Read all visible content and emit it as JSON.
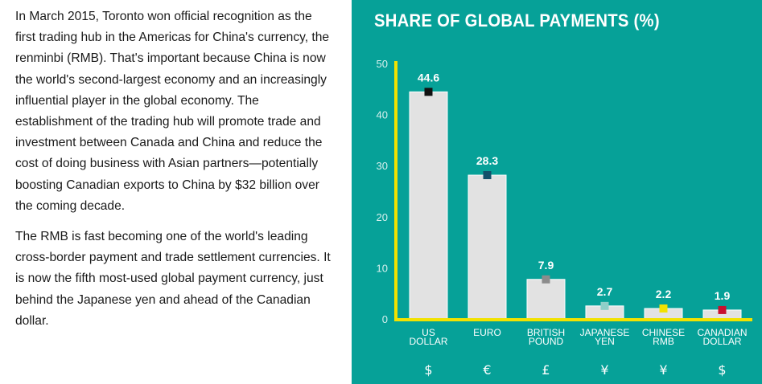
{
  "article": {
    "paragraph_1": "In March 2015, Toronto won official recognition as the first trading hub in the Americas for China's currency, the renminbi (RMB). That's important because China is now the world's second-largest economy and an increasingly influential player in the global economy. The establishment of the trading hub will promote trade and investment between Canada and China and reduce the cost of doing business with Asian partners—potentially boosting Canadian exports to China by $32 billion over the coming decade.",
    "paragraph_2": "The RMB is fast becoming one of the world's leading cross-border payment and trade settlement currencies. It is now the fifth most-used global payment currency, just behind the Japanese yen and ahead of the Canadian dollar."
  },
  "colors": {
    "panel_bg": "#06a198",
    "axis": "#f2e200",
    "bar_fill": "#e2e2e2"
  },
  "chart_data": {
    "type": "bar",
    "title": "SHARE OF GLOBAL PAYMENTS (%)",
    "ylim": [
      0,
      50
    ],
    "yticks": [
      0,
      10,
      20,
      30,
      40,
      50
    ],
    "grid": false,
    "categories": [
      {
        "lines": [
          "US",
          "DOLLAR"
        ],
        "symbol": "$",
        "value": 44.6,
        "marker_color": "#111111"
      },
      {
        "lines": [
          "EURO"
        ],
        "symbol": "€",
        "value": 28.3,
        "marker_color": "#12506a"
      },
      {
        "lines": [
          "BRITISH",
          "POUND"
        ],
        "symbol": "£",
        "value": 7.9,
        "marker_color": "#8c8c8c"
      },
      {
        "lines": [
          "JAPANESE",
          "YEN"
        ],
        "symbol": "¥",
        "value": 2.7,
        "marker_color": "#8fcfc8"
      },
      {
        "lines": [
          "CHINESE",
          "RMB"
        ],
        "symbol": "¥",
        "value": 2.2,
        "marker_color": "#f2e200"
      },
      {
        "lines": [
          "CANADIAN",
          "DOLLAR"
        ],
        "symbol": "$",
        "value": 1.9,
        "marker_color": "#c8102e"
      }
    ],
    "value_labels": [
      "44.6",
      "28.3",
      "7.9",
      "2.7",
      "2.2",
      "1.9"
    ]
  }
}
